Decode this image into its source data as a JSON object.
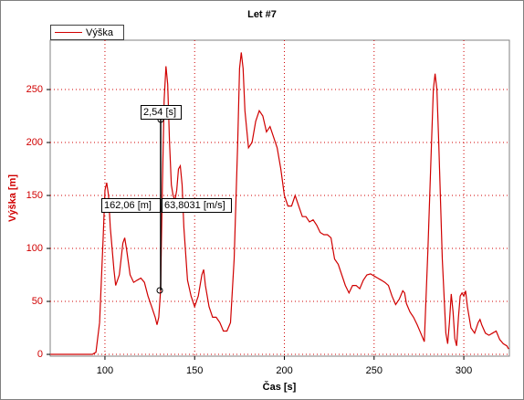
{
  "chart_data": {
    "type": "line",
    "title": "Let #7",
    "x_label": "Čas [s]",
    "y_label": "Výška [m]",
    "xlim": [
      69.5,
      325.4
    ],
    "ylim": [
      -1.7,
      296.6
    ],
    "xticks": [
      100,
      150,
      200,
      250,
      300
    ],
    "yticks": [
      0,
      50,
      100,
      150,
      200,
      250
    ],
    "grid": true,
    "annotations": [
      "2,54 [s]",
      "162,06 [m]",
      "63,8031 [m/s]"
    ],
    "series": [
      {
        "name": "Výška",
        "color": "#d00000",
        "x": [
          70,
          93,
          95,
          97,
          99,
          100,
          101,
          102,
          103,
          105,
          106,
          108,
          110,
          111,
          112,
          114,
          116,
          118,
          120,
          122,
          124,
          126,
          128,
          129,
          130,
          131,
          132,
          133,
          134,
          135,
          136,
          137,
          138,
          139,
          140,
          141,
          142,
          143,
          144,
          146,
          148,
          150,
          152,
          154,
          155,
          156,
          158,
          160,
          162,
          164,
          166,
          168,
          170,
          172,
          174,
          175,
          176,
          177,
          178,
          180,
          182,
          184,
          186,
          188,
          190,
          192,
          194,
          196,
          198,
          200,
          202,
          204,
          206,
          208,
          210,
          212,
          214,
          216,
          218,
          220,
          222,
          224,
          226,
          228,
          230,
          232,
          234,
          236,
          238,
          240,
          242,
          244,
          246,
          248,
          250,
          252,
          254,
          256,
          258,
          260,
          262,
          264,
          266,
          267,
          268,
          270,
          272,
          274,
          276,
          278,
          280,
          282,
          283,
          284,
          285,
          286,
          288,
          290,
          291,
          292,
          293,
          294,
          295,
          296,
          297,
          298,
          299,
          300,
          301,
          302,
          304,
          306,
          308,
          309,
          310,
          312,
          314,
          316,
          318,
          320,
          322,
          324,
          325
        ],
        "values": [
          0,
          0,
          2,
          30,
          110,
          155,
          162,
          150,
          120,
          80,
          65,
          75,
          105,
          110,
          100,
          75,
          68,
          70,
          72,
          68,
          55,
          45,
          35,
          28,
          35,
          60,
          160,
          240,
          272,
          255,
          200,
          160,
          150,
          145,
          155,
          175,
          178,
          160,
          120,
          70,
          55,
          45,
          55,
          75,
          80,
          65,
          45,
          35,
          35,
          30,
          22,
          22,
          30,
          90,
          200,
          270,
          285,
          270,
          230,
          195,
          200,
          220,
          230,
          225,
          210,
          215,
          205,
          195,
          175,
          150,
          140,
          140,
          150,
          140,
          130,
          130,
          125,
          127,
          122,
          115,
          113,
          113,
          110,
          90,
          85,
          75,
          65,
          58,
          65,
          65,
          62,
          70,
          75,
          76,
          74,
          72,
          70,
          68,
          65,
          55,
          47,
          52,
          60,
          58,
          48,
          40,
          35,
          28,
          20,
          12,
          100,
          200,
          250,
          265,
          250,
          200,
          90,
          20,
          10,
          30,
          57,
          40,
          15,
          8,
          35,
          55,
          58,
          55,
          60,
          45,
          25,
          20,
          30,
          33,
          28,
          20,
          18,
          20,
          22,
          14,
          10,
          8,
          5
        ]
      }
    ]
  }
}
